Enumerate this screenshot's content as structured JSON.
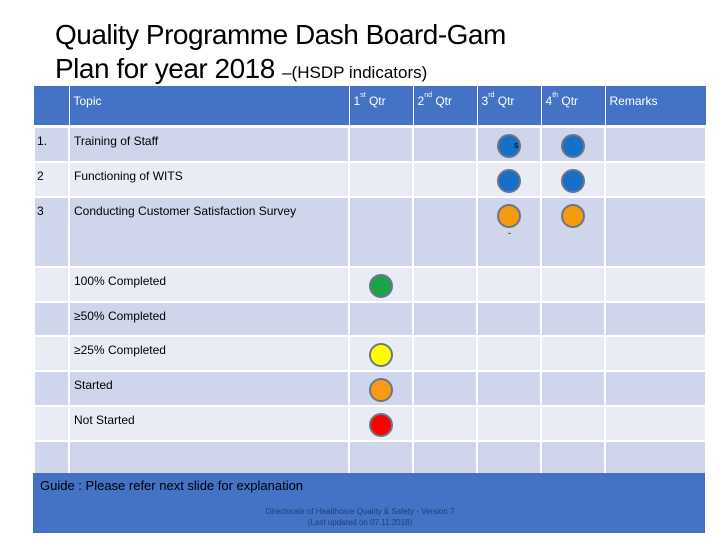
{
  "title": {
    "line1": "Quality Programme Dash Board-Gam",
    "line2_main": "Plan for year 2018 ",
    "line2_sub": "–(HSDP indicators)"
  },
  "table": {
    "header": {
      "topic": "Topic",
      "q1": "1",
      "q1_sup": "st",
      "q1_rest": " Qtr",
      "q2": "2",
      "q2_sup": "nd",
      "q2_rest": " Qtr",
      "q3": "3",
      "q3_sup": "rd",
      "q3_rest": " Qtr",
      "q4": "4",
      "q4_sup": "th",
      "q4_rest": " Qtr",
      "remarks": "Remarks"
    },
    "rows": [
      {
        "num": "1.",
        "topic": "Training of Staff",
        "q3": "blue",
        "q4": "blue"
      },
      {
        "num": "2",
        "topic": "Functioning of WITS",
        "q3": "blue",
        "q4": "blue"
      },
      {
        "num": "3",
        "topic": "Conducting Customer Satisfaction Survey",
        "q3": "orange",
        "q4": "orange",
        "q3_note": "-"
      }
    ],
    "legend": [
      {
        "label": "100% Completed",
        "color": "green"
      },
      {
        "label": "≥50% Completed",
        "color": "none"
      },
      {
        "label": "≥25% Completed",
        "color": "yellow"
      },
      {
        "label": "Started",
        "color": "orange"
      },
      {
        "label": "Not Started",
        "color": "red"
      }
    ]
  },
  "stray_marks": {
    "row1": "s",
    "row3": "-"
  },
  "footer": {
    "guide": "Guide : Please refer next slide for explanation",
    "directorate_line1": "Directorate of Healthcare Quality & Safety - Version 7",
    "directorate_line2": "(Last updated on 07.11.2018)"
  }
}
